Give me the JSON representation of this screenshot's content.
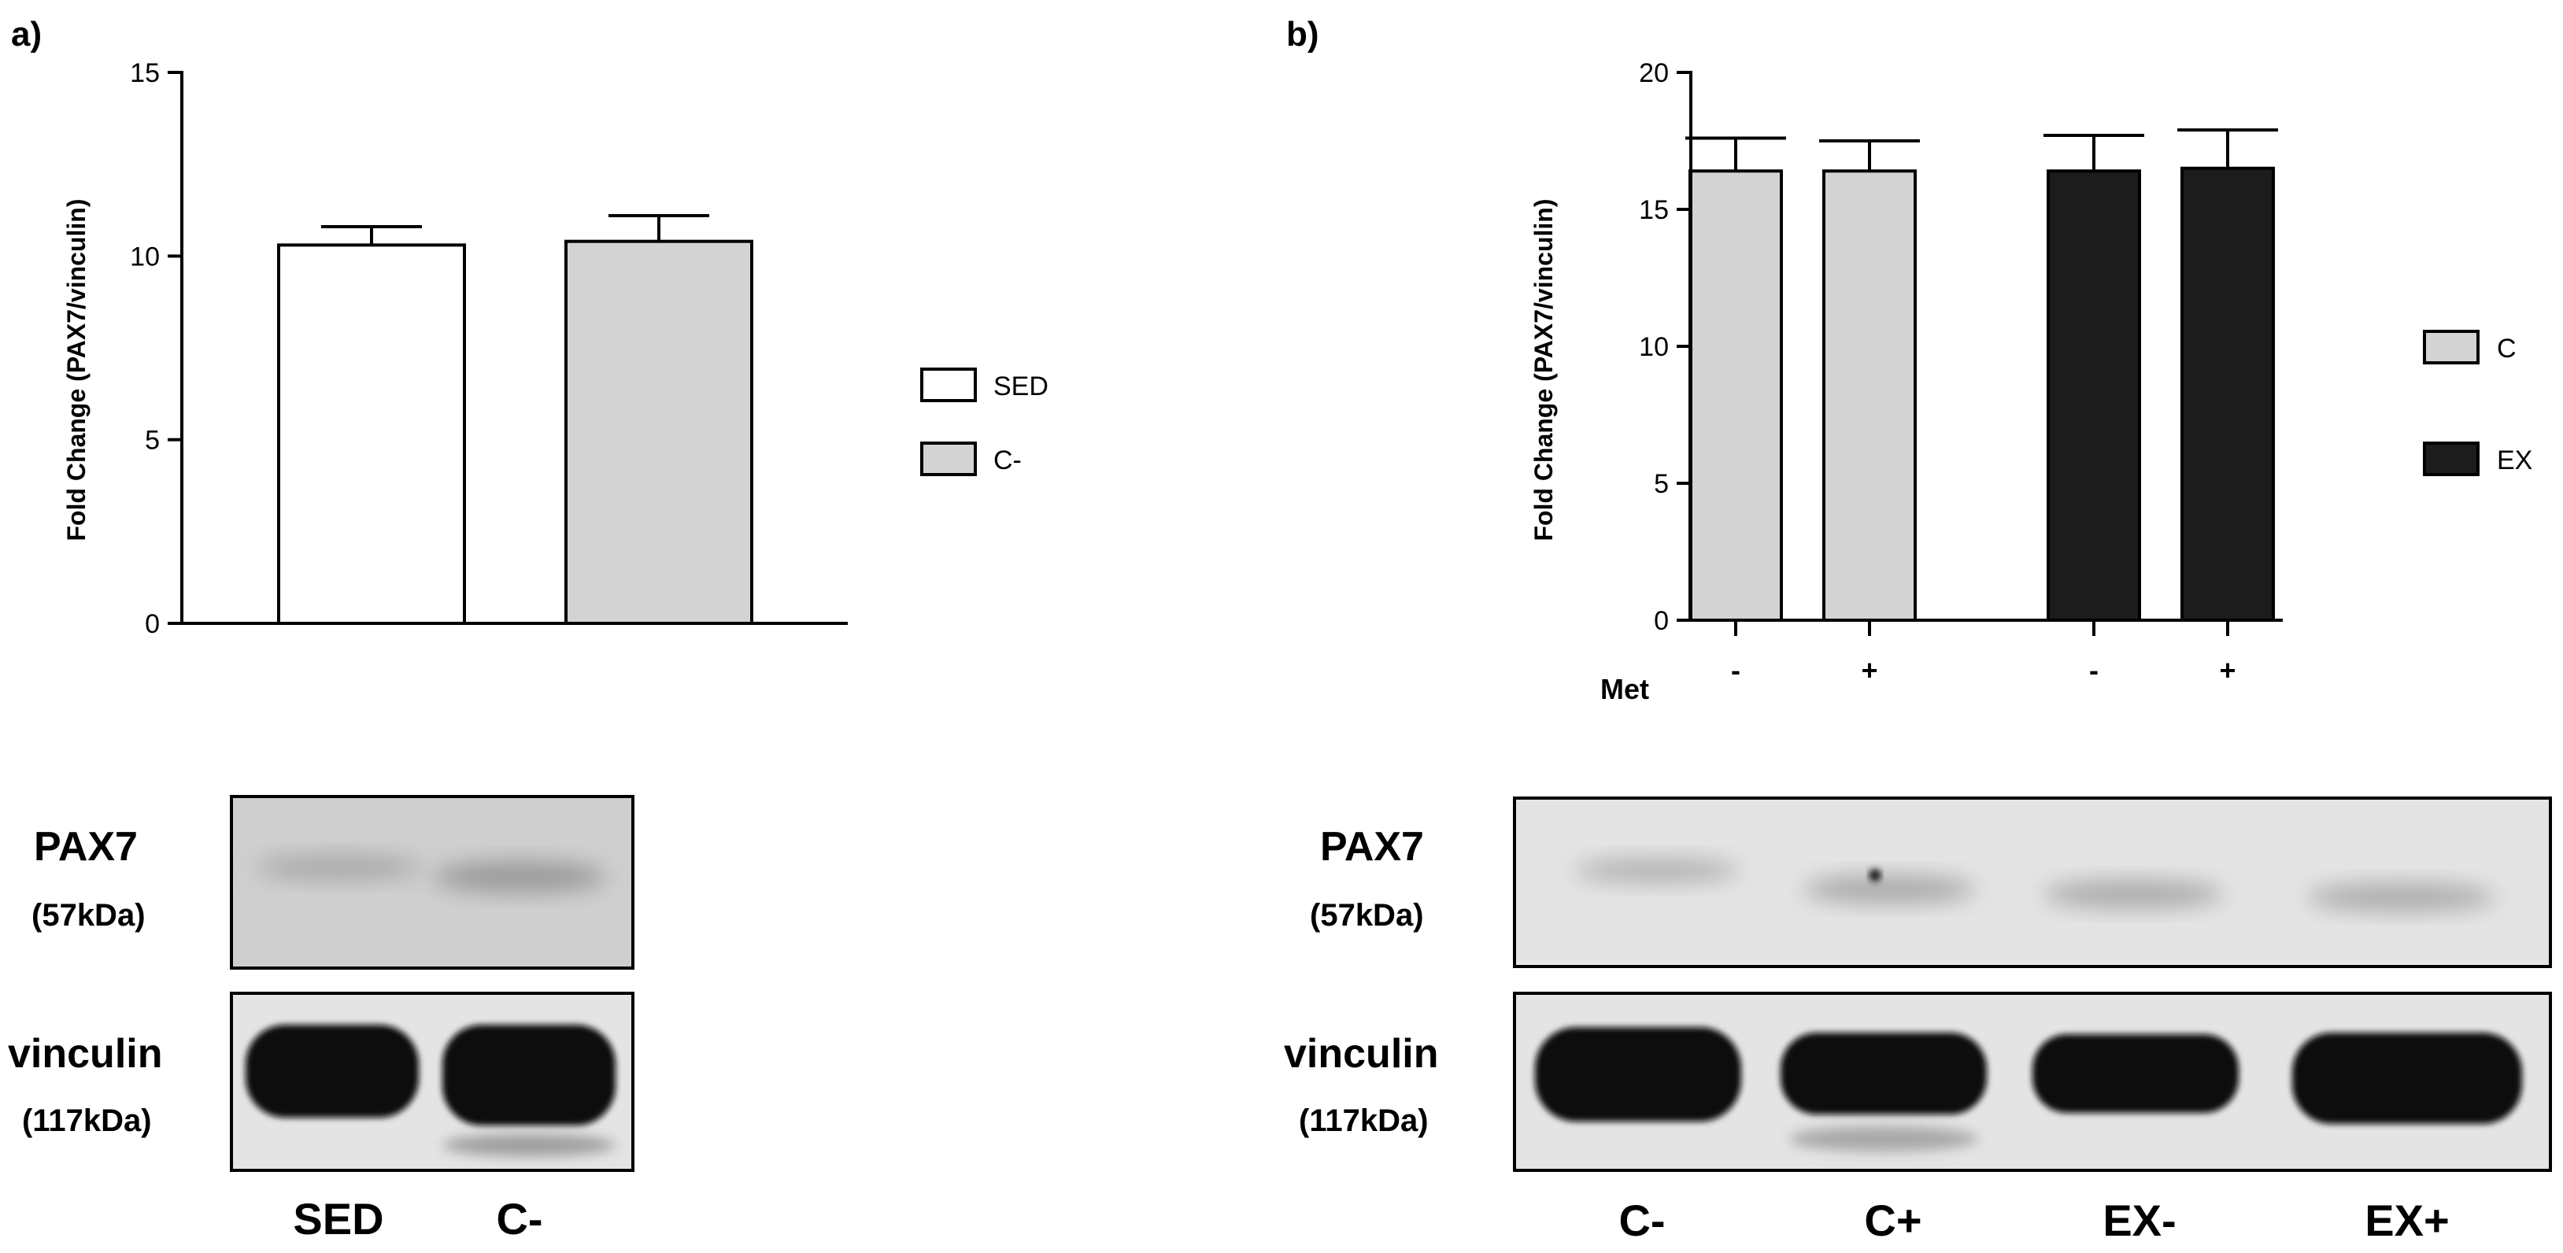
{
  "panels": {
    "a": {
      "letter": "a)"
    },
    "b": {
      "letter": "b)"
    }
  },
  "colors": {
    "sed_fill": "#ffffff",
    "c_fill": "#d3d3d3",
    "ex_fill": "#1c1c1c",
    "axis": "#000000",
    "blot_bg_a": "#cfcfcf",
    "blot_bg_b": "#e4e4e4",
    "band": "#080808"
  },
  "chart_data": [
    {
      "type": "bar",
      "panel": "a",
      "categories": [
        "SED",
        "C-"
      ],
      "values": [
        10.3,
        10.4
      ],
      "errors": [
        0.5,
        0.7
      ],
      "ylabel": "Fold Change (PAX7/vinculin)",
      "ylim": [
        0,
        15
      ],
      "yticks": [
        0,
        5,
        10,
        15
      ],
      "legend": [
        {
          "label": "SED",
          "color": "#ffffff"
        },
        {
          "label": "C-",
          "color": "#d3d3d3"
        }
      ],
      "legend_position": "right",
      "grid": false
    },
    {
      "type": "bar",
      "panel": "b",
      "categories": [
        "C-",
        "C+",
        "EX-",
        "EX+"
      ],
      "met_row_label": "Met",
      "met_signs": [
        "-",
        "+",
        "-",
        "+"
      ],
      "series": [
        {
          "name": "C",
          "color": "#d3d3d3",
          "values": [
            16.4,
            16.4,
            null,
            null
          ],
          "errors": [
            1.2,
            1.1,
            null,
            null
          ]
        },
        {
          "name": "EX",
          "color": "#1c1c1c",
          "values": [
            null,
            null,
            16.4,
            16.5
          ],
          "errors": [
            null,
            null,
            1.3,
            1.4
          ]
        }
      ],
      "ylabel": "Fold Change (PAX7/vinculin)",
      "ylim": [
        0,
        20
      ],
      "yticks": [
        0,
        5,
        10,
        15,
        20
      ],
      "legend_position": "right",
      "grid": false
    }
  ],
  "blots": {
    "a": {
      "pax7": {
        "name": "PAX7",
        "kda": "(57kDa)"
      },
      "vinculin": {
        "name": "vinculin",
        "kda": "(117kDa)"
      },
      "lanes": [
        "SED",
        "C-"
      ]
    },
    "b": {
      "pax7": {
        "name": "PAX7",
        "kda": "(57kDa)"
      },
      "vinculin": {
        "name": "vinculin",
        "kda": "(117kDa)"
      },
      "lanes": [
        "C-",
        "C+",
        "EX-",
        "EX+"
      ]
    }
  }
}
